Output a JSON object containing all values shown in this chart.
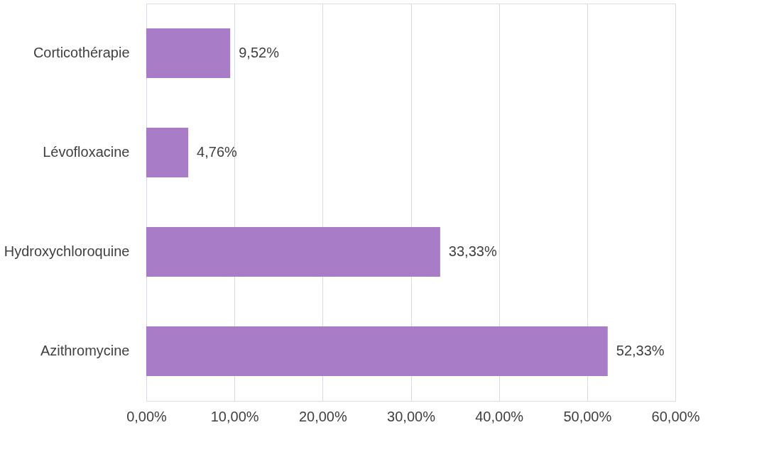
{
  "chart_data": {
    "type": "bar",
    "orientation": "horizontal",
    "categories": [
      "Corticothérapie",
      "Lévofloxacine",
      "Hydroxychloroquine",
      "Azithromycine"
    ],
    "values": [
      9.52,
      4.76,
      33.33,
      52.33
    ],
    "value_labels": [
      "9,52%",
      "4,76%",
      "33,33%",
      "52,33%"
    ],
    "color": "#a87cc6",
    "xlim": [
      0,
      60
    ],
    "xticks": [
      {
        "value": 0,
        "label": "0,00%"
      },
      {
        "value": 10,
        "label": "10,00%"
      },
      {
        "value": 20,
        "label": "20,00%"
      },
      {
        "value": 30,
        "label": "30,00%"
      },
      {
        "value": 40,
        "label": "40,00%"
      },
      {
        "value": 50,
        "label": "50,00%"
      },
      {
        "value": 60,
        "label": "60,00%"
      }
    ],
    "grid": "x"
  }
}
